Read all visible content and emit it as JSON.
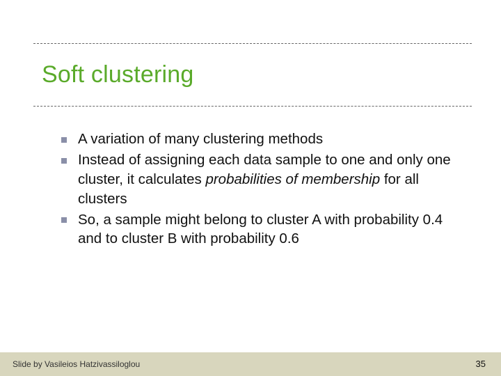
{
  "colors": {
    "title": "#5aaa2a",
    "bullet": "#8a8fa8",
    "rule": "#666666",
    "footer_band": "#d8d6bd",
    "background": "#ffffff"
  },
  "typography": {
    "title_fontsize": 34,
    "body_fontsize": 20.5,
    "footer_fontsize": 12,
    "pagenum_fontsize": 13,
    "font_family": "Verdana"
  },
  "title": "Soft clustering",
  "bullets": [
    {
      "text": "A variation of many clustering methods"
    },
    {
      "prefix": "Instead of assigning each data sample to one and only one cluster, it calculates ",
      "em": "probabilities of membership",
      "suffix": " for all clusters"
    },
    {
      "text": "So, a sample might belong to cluster A with probability 0.4 and to cluster B with probability 0.6"
    }
  ],
  "footer": {
    "credit": "Slide by Vasileios Hatzivassiloglou",
    "page": "35"
  }
}
